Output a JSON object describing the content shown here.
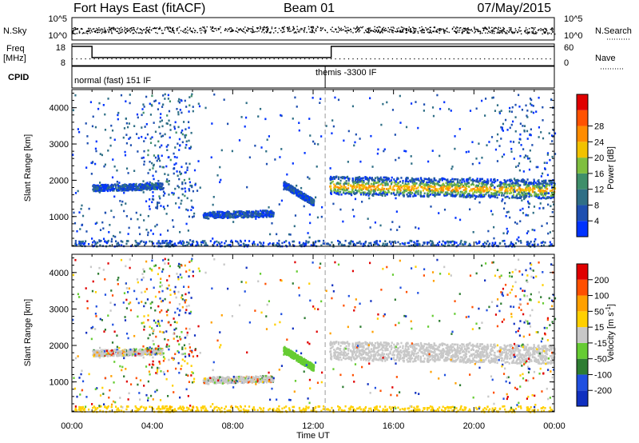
{
  "header": {
    "title": "Fort Hays East (fitACF)",
    "beam": "Beam 01",
    "date": "07/May/2015"
  },
  "top_panels": {
    "nsky_label": "N.Sky",
    "nsky_ticks": [
      "10^5",
      "10^0"
    ],
    "nsearch_label": "N.Search",
    "nsearch_ticks": [
      "10^5",
      "10^0"
    ],
    "freq_label_line1": "Freq",
    "freq_label_line2": "[MHz]",
    "freq_ticks": [
      "18",
      "8"
    ],
    "nave_label": "Nave",
    "nave_ticks": [
      "60",
      "0"
    ],
    "cpid_label": "CPID",
    "cpid_modes": [
      "normal (fast) 151 IF",
      "themis -3300 IF"
    ],
    "cpid_change_hour": 12.6
  },
  "chart_data": [
    {
      "type": "heatmap",
      "panel": "power",
      "ylabel": "Slant Range [km]",
      "xlabel": "",
      "xlim": [
        0,
        24
      ],
      "ylim": [
        180,
        4500
      ],
      "xtick_labels": [
        "00:00",
        "04:00",
        "08:00",
        "12:00",
        "16:00",
        "20:00",
        "00:00"
      ],
      "ytick_labels": [
        "1000",
        "2000",
        "3000",
        "4000"
      ],
      "colorbar": {
        "label": "Power [dB]",
        "ticks": [
          "4",
          "8",
          "12",
          "16",
          "20",
          "24",
          "28"
        ],
        "colors": [
          "#0033ff",
          "#1e4fb0",
          "#2f6f86",
          "#3f8f6a",
          "#7fbf3f",
          "#f2c200",
          "#ff8c00",
          "#ff5200",
          "#e00000"
        ]
      },
      "echo_bands": [
        {
          "t_start": 1.0,
          "t_end": 4.5,
          "range_start": 1800,
          "range_end": 1850
        },
        {
          "t_start": 10.5,
          "t_end": 12.0,
          "range_start": 1900,
          "range_end": 1400
        },
        {
          "t_start": 12.8,
          "t_end": 24.0,
          "range_start": 1850,
          "range_end": 1750
        },
        {
          "t_start": 6.5,
          "t_end": 10.0,
          "range_start": 1050,
          "range_end": 1100
        }
      ]
    },
    {
      "type": "heatmap",
      "panel": "velocity",
      "ylabel": "Slant Range [km]",
      "xlabel": "Time UT",
      "xlim": [
        0,
        24
      ],
      "ylim": [
        180,
        4500
      ],
      "xtick_labels": [
        "00:00",
        "04:00",
        "08:00",
        "12:00",
        "16:00",
        "20:00",
        "00:00"
      ],
      "ytick_labels": [
        "1000",
        "2000",
        "3000",
        "4000"
      ],
      "colorbar": {
        "label": "Velocity [m s^-1]",
        "ticks": [
          "200",
          "100",
          "50",
          "15",
          "-15",
          "-50",
          "-100",
          "-200"
        ],
        "colors": [
          "#1030c0",
          "#2050e0",
          "#2e7d32",
          "#66cc33",
          "#c8c8c8",
          "#ffd000",
          "#ffa000",
          "#ff5000",
          "#e00000"
        ]
      }
    }
  ]
}
